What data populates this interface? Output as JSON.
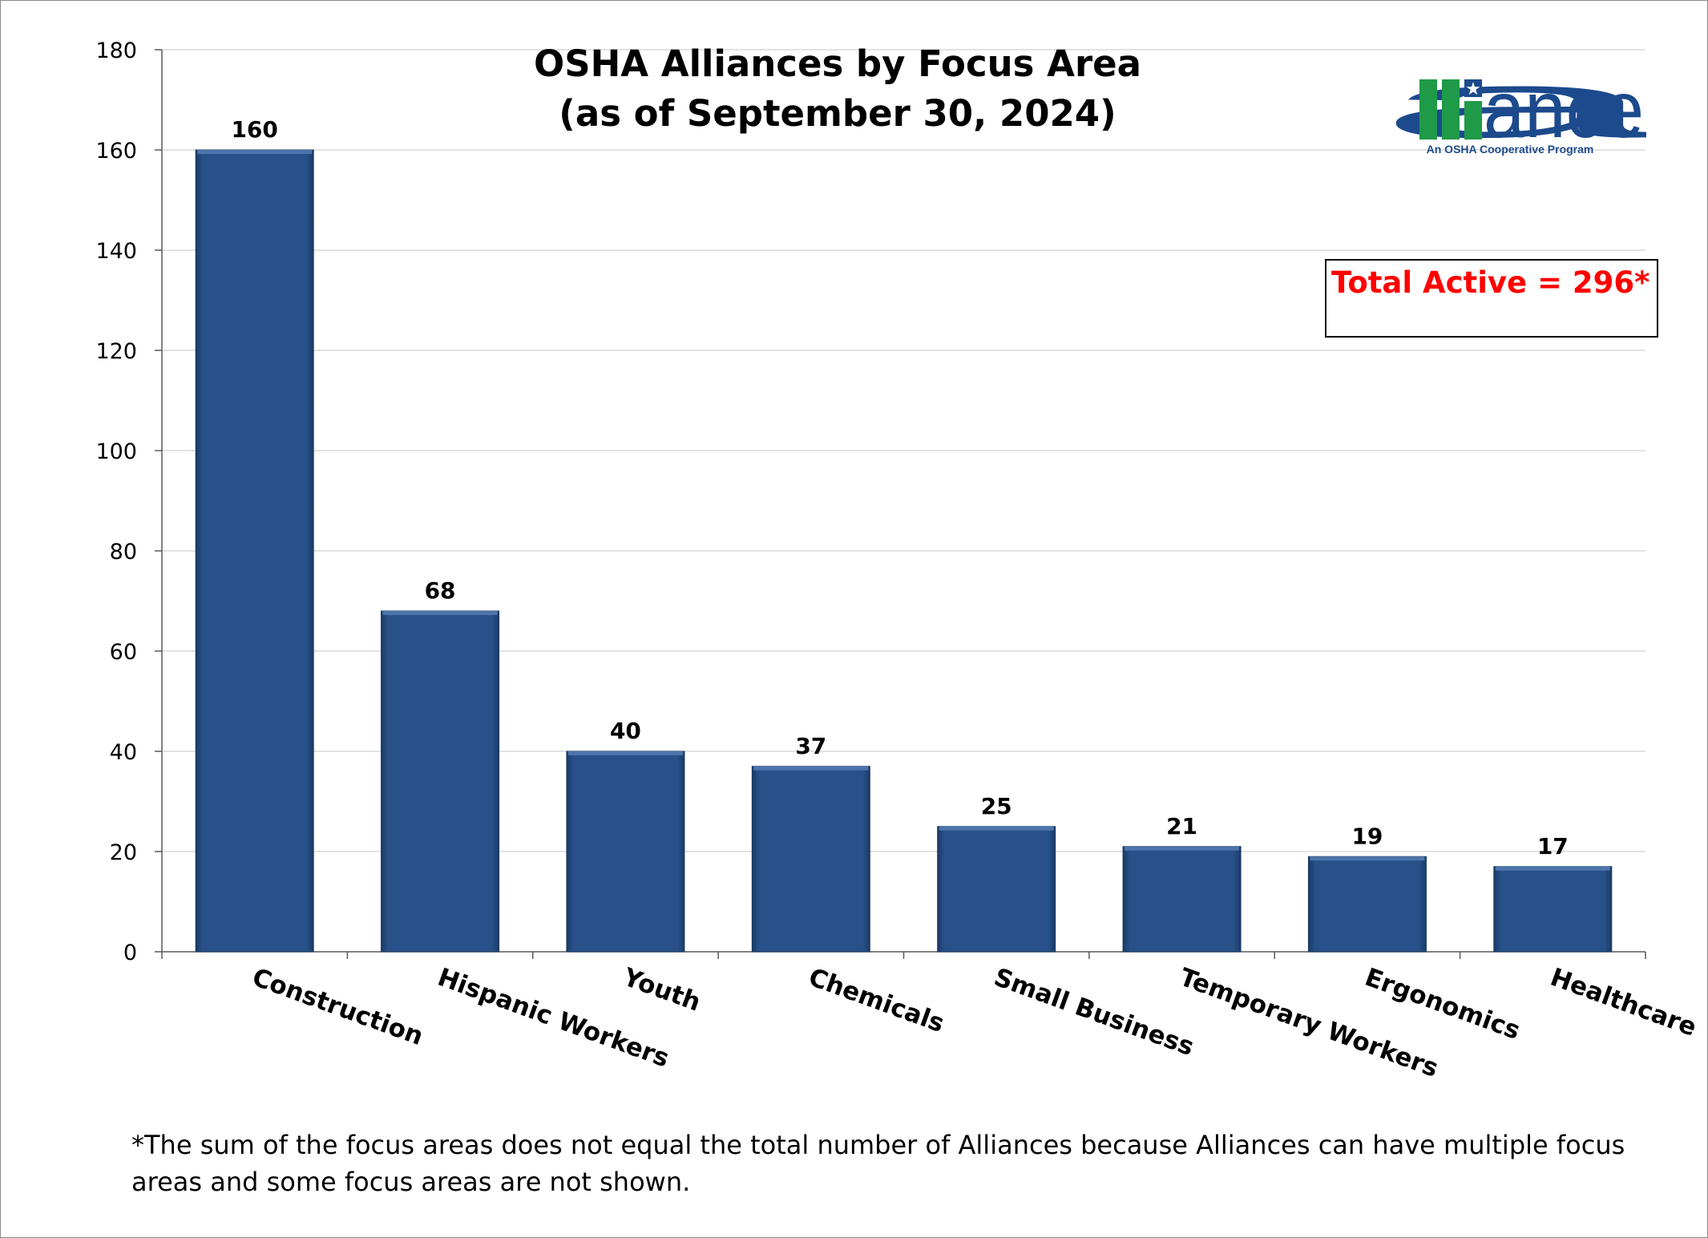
{
  "chart_data": {
    "type": "bar",
    "title": "OSHA Alliances by Focus Area",
    "subtitle": "(as of September 30, 2024)",
    "categories": [
      "Construction",
      "Hispanic Workers",
      "Youth",
      "Chemicals",
      "Small Business",
      "Temporary Workers",
      "Ergonomics",
      "Healthcare"
    ],
    "values": [
      160,
      68,
      40,
      37,
      25,
      21,
      19,
      17
    ],
    "xlabel": "",
    "ylabel": "",
    "ylim": [
      0,
      180
    ],
    "yticks": [
      0,
      20,
      40,
      60,
      80,
      100,
      120,
      140,
      160,
      180
    ],
    "grid": true,
    "bar_color": "#285189",
    "annotation": "Total Active = 296*",
    "annotation_color": "#ff0000"
  },
  "footnote": "*The sum of the focus areas does not equal the total number of Alliances because Alliances can have multiple focus areas and some focus areas are not shown.",
  "logo": {
    "word": "alliance",
    "tagline": "An OSHA Cooperative Program",
    "colors": {
      "blue": "#1c4a8c",
      "green": "#1e9a48"
    }
  }
}
